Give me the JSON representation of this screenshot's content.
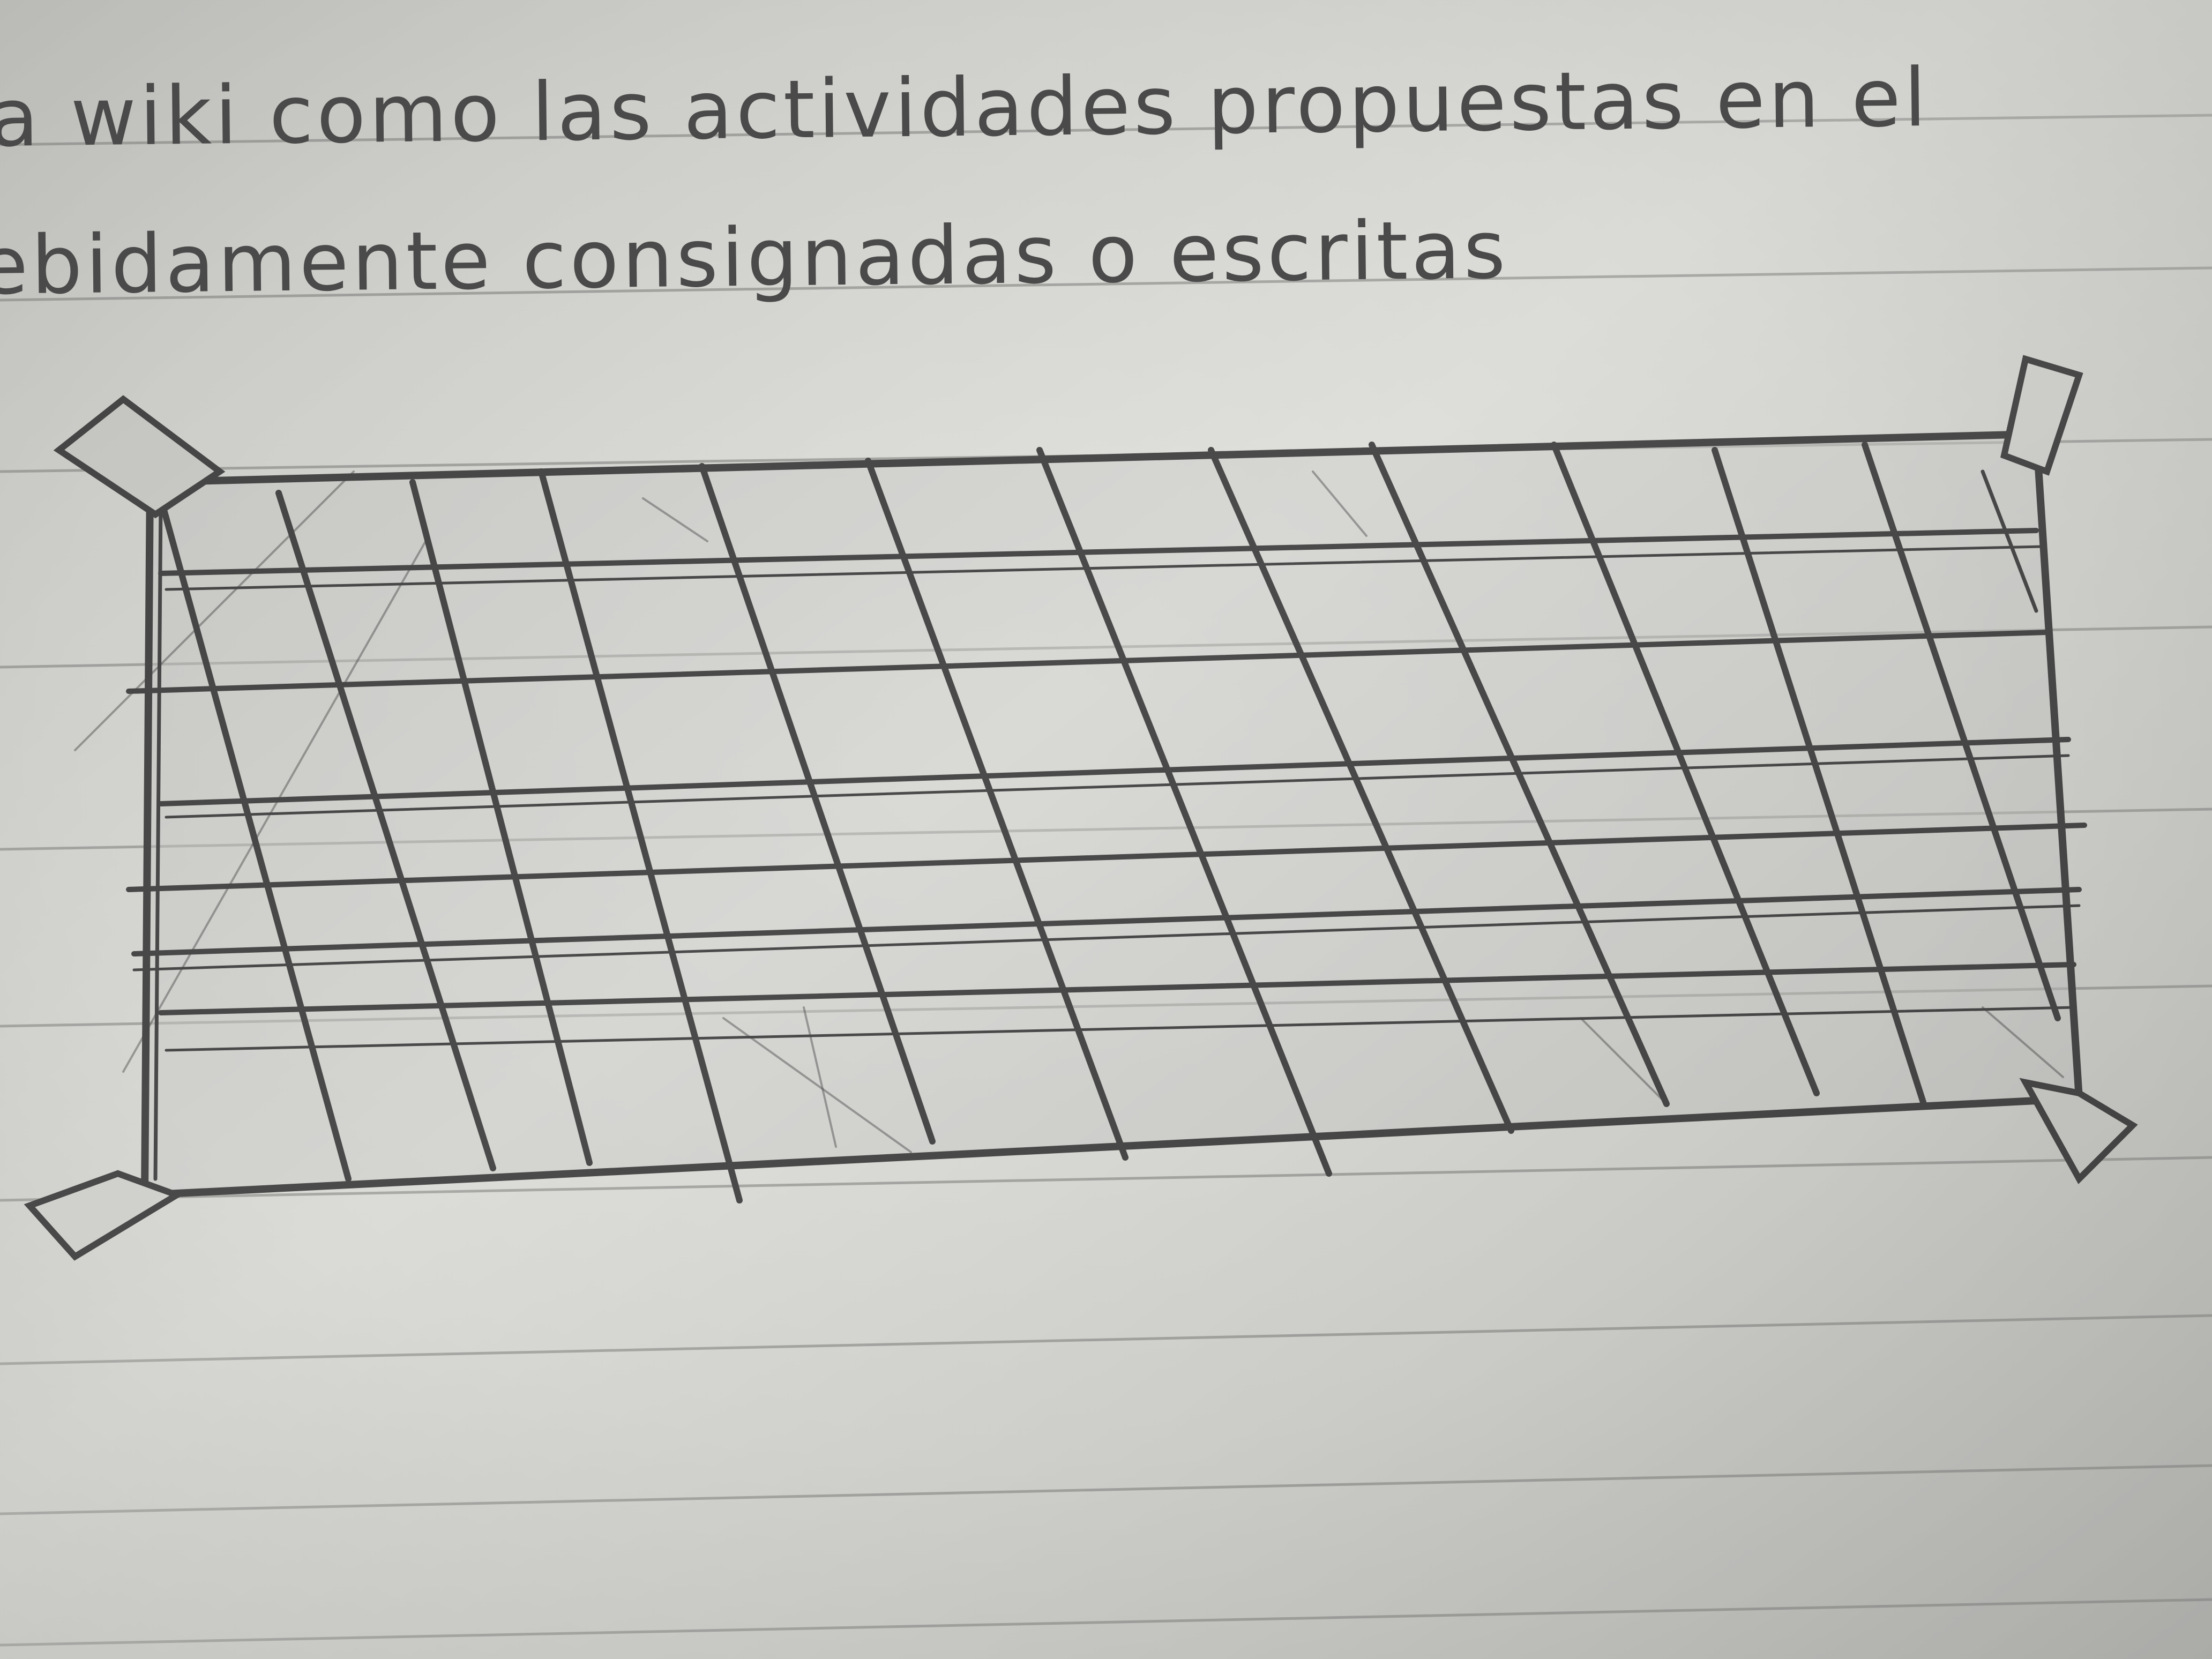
{
  "notebook": {
    "text_lines": [
      "a wiki como las actividades propuestas en el",
      "ebidamente consignadas o escritas"
    ]
  },
  "drawing": {
    "subject": "hand-drawn-grid-panel-sketch",
    "pencil_color": "#4a4a4a",
    "paper_color": "#dedeDA",
    "rule_color": "#a9a9a6"
  }
}
